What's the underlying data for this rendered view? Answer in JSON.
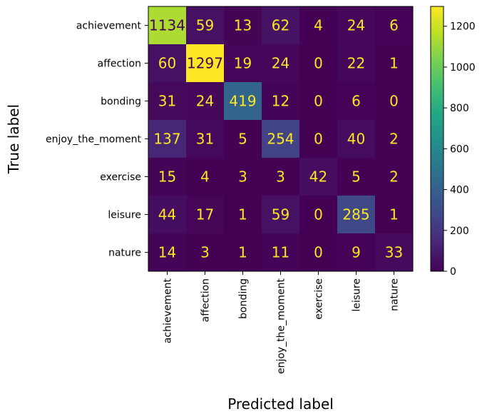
{
  "chart_data": {
    "type": "heatmap",
    "title": "",
    "xlabel": "Predicted label",
    "ylabel": "True label",
    "x_categories": [
      "achievement",
      "affection",
      "bonding",
      "enjoy_the_moment",
      "exercise",
      "leisure",
      "nature"
    ],
    "y_categories": [
      "achievement",
      "affection",
      "bonding",
      "enjoy_the_moment",
      "exercise",
      "leisure",
      "nature"
    ],
    "values": [
      [
        1134,
        59,
        13,
        62,
        4,
        24,
        6
      ],
      [
        60,
        1297,
        19,
        24,
        0,
        22,
        1
      ],
      [
        31,
        24,
        419,
        12,
        0,
        6,
        0
      ],
      [
        137,
        31,
        5,
        254,
        0,
        40,
        2
      ],
      [
        15,
        4,
        3,
        3,
        42,
        5,
        2
      ],
      [
        44,
        17,
        1,
        59,
        0,
        285,
        1
      ],
      [
        14,
        3,
        1,
        11,
        0,
        9,
        33
      ]
    ],
    "colormap": "viridis",
    "value_range": [
      0,
      1297
    ],
    "colorbar_ticks": [
      "0",
      "200",
      "400",
      "600",
      "800",
      "1000",
      "1200"
    ],
    "colorbar_tick_values": [
      0,
      200,
      400,
      600,
      800,
      1000,
      1200
    ],
    "text_colors": {
      "light": "#fde725",
      "dark": "#440154"
    },
    "grid": false,
    "colorbar": "right"
  }
}
